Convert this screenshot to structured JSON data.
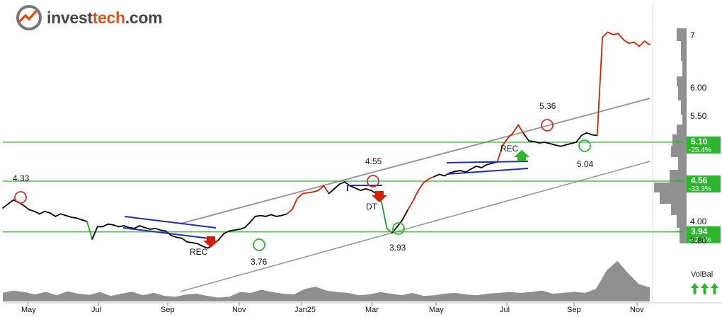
{
  "logo": {
    "part1": "invest",
    "part2": "tech",
    "part3": ".com"
  },
  "chart_data": {
    "type": "line",
    "title": "",
    "x_tick_labels": [
      "May",
      "Jul",
      "Sep",
      "Nov",
      "Jan25",
      "Mar",
      "May",
      "Jul",
      "Sep",
      "Nov"
    ],
    "y_ticks": [
      "7",
      "6.00",
      "5.50",
      "4.00",
      "3.80"
    ],
    "y_scale": "log",
    "series": [
      {
        "values": [
          4.22,
          4.27,
          4.32,
          4.29,
          4.25,
          4.2,
          4.18,
          4.15,
          4.18,
          4.16,
          4.12,
          4.15,
          4.13,
          4.11,
          4.1,
          4.08,
          4.06,
          3.86,
          4.0,
          4.0,
          4.03,
          4.02,
          4.0,
          4.01,
          3.99,
          3.98,
          4.01,
          3.99,
          3.97,
          3.98,
          3.96,
          3.95,
          3.9,
          3.88,
          3.87,
          3.83,
          3.82,
          3.81,
          3.78,
          3.76,
          3.8,
          3.85,
          3.92,
          3.95,
          3.96,
          3.97,
          3.99,
          4.05,
          4.12,
          4.13,
          4.12,
          4.14,
          4.12,
          4.13,
          4.15,
          4.2,
          4.34,
          4.4,
          4.41,
          4.42,
          4.44,
          4.5,
          4.4,
          4.46,
          4.52,
          4.55,
          4.5,
          4.47,
          4.44,
          4.46,
          4.44,
          4.4,
          4.3,
          3.98,
          3.93,
          4.0,
          4.08,
          4.2,
          4.31,
          4.44,
          4.54,
          4.59,
          4.62,
          4.65,
          4.63,
          4.67,
          4.69,
          4.7,
          4.68,
          4.72,
          4.76,
          4.74,
          4.78,
          4.8,
          4.82,
          5.05,
          5.16,
          5.24,
          5.36,
          5.23,
          5.12,
          5.11,
          5.09,
          5.1,
          5.08,
          5.06,
          5.04,
          5.06,
          5.08,
          5.1,
          5.2,
          5.24,
          5.21,
          5.2,
          6.9,
          7.0,
          6.95,
          6.97,
          6.85,
          6.78,
          6.8,
          6.72,
          6.82,
          6.75
        ]
      }
    ],
    "volume_series": [
      0.55,
      0.7,
      0.6,
      0.45,
      0.62,
      0.4,
      0.65,
      0.5,
      0.42,
      0.6,
      0.35,
      0.5,
      0.62,
      0.4,
      0.55,
      0.35,
      0.3,
      0.45,
      0.5,
      0.35,
      0.25,
      0.3,
      0.6,
      0.55,
      0.75,
      0.6,
      0.5,
      0.45,
      0.8,
      0.95,
      0.7,
      0.6,
      0.55,
      0.4,
      0.45,
      0.6,
      0.5,
      0.4,
      0.55,
      0.35,
      0.4,
      0.5,
      0.55,
      0.45,
      0.4,
      0.5,
      0.55,
      0.6,
      0.55,
      0.6,
      0.7,
      0.5,
      0.55,
      0.62,
      0.55,
      0.8,
      2.0,
      2.6,
      1.8,
      1.1,
      0.9
    ],
    "support_resistance": [
      {
        "value": "5.10",
        "pct": "-25.4%"
      },
      {
        "value": "4.56",
        "pct": "-33.3%"
      },
      {
        "value": "3.94",
        "pct": "-42.4%"
      }
    ],
    "annotations": {
      "price_labels": [
        "4.33",
        "3.76",
        "4.55",
        "3.93",
        "5.36",
        "5.04"
      ],
      "pattern_labels": [
        "REC",
        "DT",
        "REC"
      ]
    },
    "volume_label": "VolBal",
    "colors": {
      "line_black": "#000000",
      "line_up": "#cc2200",
      "line_down": "#2a9a2a",
      "support_green": "#2db52d",
      "channel_gray": "#999999",
      "trend_blue": "#1f2fa8",
      "volume_gray": "#8f8f8f",
      "axis_label_bg": "#2db52d"
    }
  }
}
